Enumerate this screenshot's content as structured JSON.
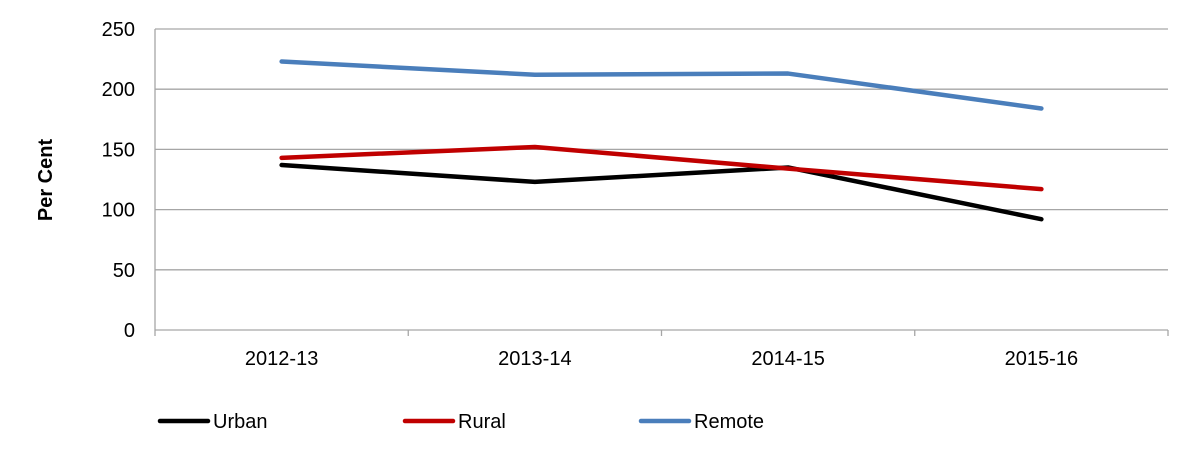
{
  "chart_data": {
    "type": "line",
    "categories": [
      "2012-13",
      "2013-14",
      "2014-15",
      "2015-16"
    ],
    "series": [
      {
        "name": "Urban",
        "color": "#000000",
        "values": [
          137,
          123,
          135,
          92
        ]
      },
      {
        "name": "Rural",
        "color": "#C00000",
        "values": [
          143,
          152,
          134,
          117
        ]
      },
      {
        "name": "Remote",
        "color": "#4A7EBB",
        "values": [
          223,
          212,
          213,
          184
        ]
      }
    ],
    "ylabel": "Per Cent",
    "xlabel": "",
    "ylim": [
      0,
      250
    ],
    "yticks": [
      0,
      50,
      100,
      150,
      200,
      250
    ],
    "grid": true,
    "legend_position": "bottom"
  }
}
